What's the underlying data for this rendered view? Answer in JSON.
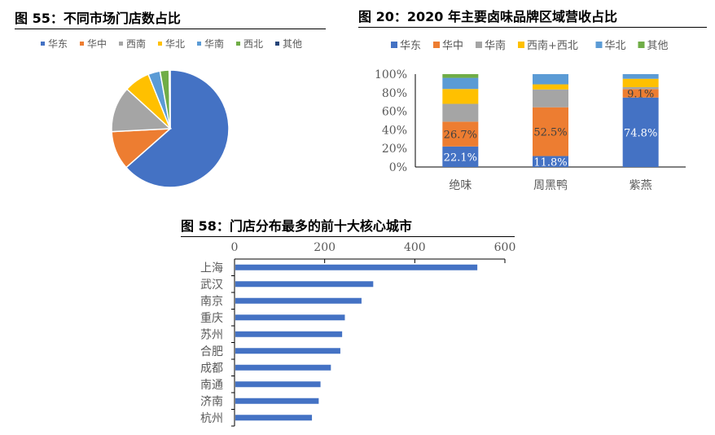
{
  "chart_data": [
    {
      "type": "pie",
      "title": "图 55：不同市场门店数占比",
      "categories": [
        "华东",
        "华中",
        "西南",
        "华北",
        "华南",
        "西北",
        "其他"
      ],
      "values": [
        63.5,
        10.7,
        12.6,
        7.1,
        3.3,
        2.5,
        0.3
      ],
      "colors": [
        "#4472C4",
        "#ED7D31",
        "#A5A5A5",
        "#FFC000",
        "#5B9BD5",
        "#70AD47",
        "#264478"
      ],
      "legend": "top"
    },
    {
      "type": "bar",
      "stacked": true,
      "title": "图 20：2020 年主要卤味品牌区域营收占比",
      "categories": [
        "绝味",
        "周黑鸭",
        "紫燕"
      ],
      "series": [
        {
          "name": "华东",
          "values": [
            22.1,
            11.8,
            74.8
          ],
          "color": "#4472C4",
          "labels": [
            "22.1%",
            "11.8%",
            "74.8%"
          ]
        },
        {
          "name": "华中",
          "values": [
            26.7,
            52.5,
            9.1
          ],
          "color": "#ED7D31",
          "labels": [
            "26.7%",
            "52.5%",
            "9.1%"
          ]
        },
        {
          "name": "华南",
          "values": [
            19.2,
            19.2,
            2.1
          ],
          "color": "#A5A5A5"
        },
        {
          "name": "西南+西北",
          "values": [
            16,
            5.5,
            9
          ],
          "color": "#FFC000"
        },
        {
          "name": "华北",
          "values": [
            12,
            11,
            5
          ],
          "color": "#5B9BD5"
        },
        {
          "name": "其他",
          "values": [
            4,
            0,
            0
          ],
          "color": "#70AD47"
        }
      ],
      "ylim": [
        0,
        100
      ],
      "yticks": [
        "0%",
        "20%",
        "40%",
        "60%",
        "80%",
        "100%"
      ],
      "legend": "top"
    },
    {
      "type": "bar",
      "orientation": "horizontal",
      "title": "图 58：门店分布最多的前十大核心城市",
      "categories": [
        "上海",
        "武汉",
        "南京",
        "重庆",
        "苏州",
        "合肥",
        "成都",
        "南通",
        "济南",
        "杭州"
      ],
      "values": [
        537,
        306,
        280,
        243,
        237,
        233,
        212,
        189,
        185,
        170
      ],
      "xlim": [
        0,
        600
      ],
      "xticks": [
        "0",
        "200",
        "400",
        "600"
      ],
      "color": "#4472C4"
    }
  ]
}
